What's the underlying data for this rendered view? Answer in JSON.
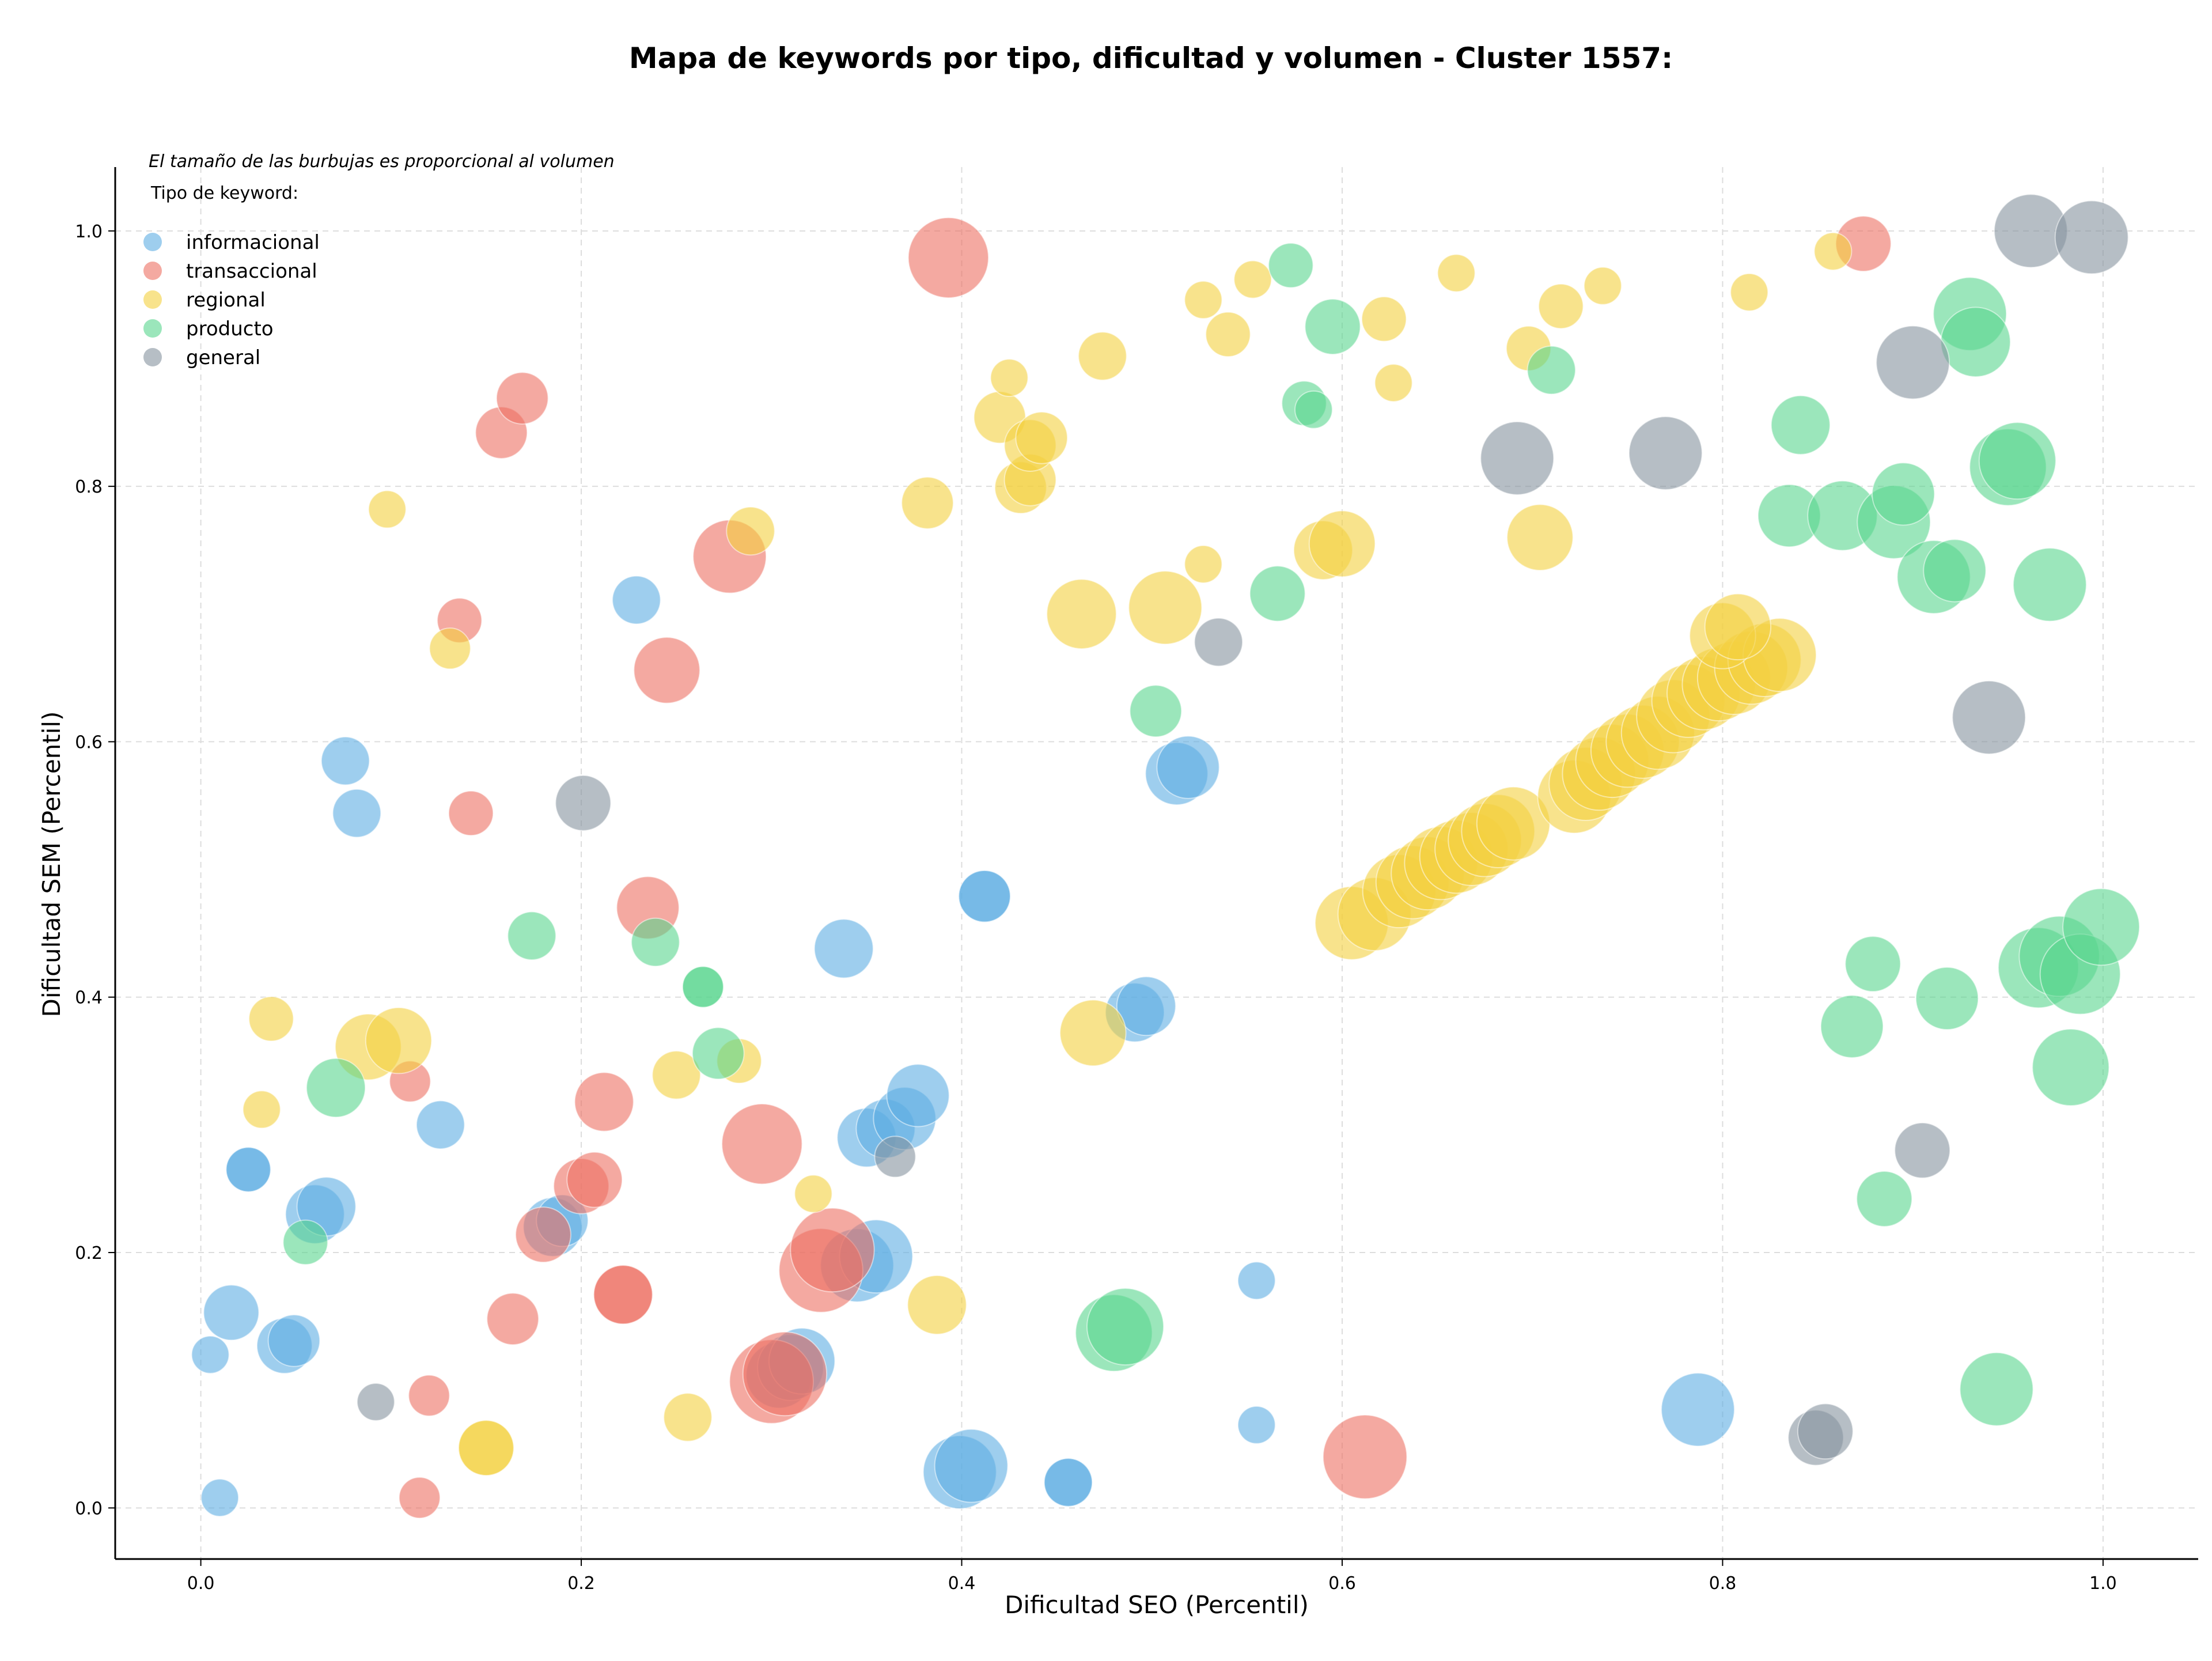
{
  "chart_data": {
    "type": "scatter",
    "title": "Mapa de keywords por tipo, dificultad y volumen - Cluster 1557:",
    "xlabel": "Dificultad SEO (Percentil)",
    "ylabel": "Dificultad SEM (Percentil)",
    "note": "El tamaño de las burbujas es proporcional al volumen",
    "legend_title": "Tipo de keyword:",
    "legend_position": "top-left",
    "grid": true,
    "xlim": [
      -0.045,
      1.05
    ],
    "ylim": [
      -0.04,
      1.05
    ],
    "xticks": [
      0.0,
      0.2,
      0.4,
      0.6,
      0.8,
      1.0
    ],
    "xtick_labels": [
      "0.0",
      "0.2",
      "0.4",
      "0.6",
      "0.8",
      "1.0"
    ],
    "yticks": [
      0.0,
      0.2,
      0.4,
      0.6,
      0.8,
      1.0
    ],
    "ytick_labels": [
      "0.0",
      "0.2",
      "0.4",
      "0.6",
      "0.8",
      "1.0"
    ],
    "series": [
      {
        "name": "informacional",
        "color": "#5DADE2",
        "points": [
          [
            0.005,
            0.12,
            0.2
          ],
          [
            0.01,
            0.008,
            0.2
          ],
          [
            0.016,
            0.153,
            0.45
          ],
          [
            0.025,
            0.265,
            0.3
          ],
          [
            0.025,
            0.265,
            0.3
          ],
          [
            0.044,
            0.127,
            0.45
          ],
          [
            0.049,
            0.131,
            0.4
          ],
          [
            0.06,
            0.23,
            0.5
          ],
          [
            0.066,
            0.236,
            0.5
          ],
          [
            0.076,
            0.585,
            0.35
          ],
          [
            0.082,
            0.544,
            0.35
          ],
          [
            0.126,
            0.3,
            0.35
          ],
          [
            0.185,
            0.22,
            0.5
          ],
          [
            0.19,
            0.225,
            0.4
          ],
          [
            0.229,
            0.711,
            0.35
          ],
          [
            0.304,
            0.104,
            0.6
          ],
          [
            0.31,
            0.11,
            0.6
          ],
          [
            0.316,
            0.115,
            0.6
          ],
          [
            0.338,
            0.438,
            0.5
          ],
          [
            0.345,
            0.19,
            0.7
          ],
          [
            0.35,
            0.29,
            0.5
          ],
          [
            0.355,
            0.197,
            0.7
          ],
          [
            0.36,
            0.297,
            0.5
          ],
          [
            0.37,
            0.305,
            0.55
          ],
          [
            0.377,
            0.323,
            0.55
          ],
          [
            0.399,
            0.028,
            0.7
          ],
          [
            0.405,
            0.033,
            0.7
          ],
          [
            0.412,
            0.479,
            0.4
          ],
          [
            0.412,
            0.479,
            0.4
          ],
          [
            0.456,
            0.02,
            0.35
          ],
          [
            0.456,
            0.02,
            0.35
          ],
          [
            0.491,
            0.388,
            0.5
          ],
          [
            0.497,
            0.393,
            0.5
          ],
          [
            0.513,
            0.575,
            0.55
          ],
          [
            0.519,
            0.58,
            0.55
          ],
          [
            0.555,
            0.065,
            0.2
          ],
          [
            0.555,
            0.178,
            0.2
          ],
          [
            0.787,
            0.077,
            0.7
          ]
        ]
      },
      {
        "name": "transaccional",
        "color": "#EC7063",
        "points": [
          [
            0.115,
            0.008,
            0.25
          ],
          [
            0.11,
            0.334,
            0.25
          ],
          [
            0.12,
            0.088,
            0.25
          ],
          [
            0.136,
            0.695,
            0.3
          ],
          [
            0.142,
            0.544,
            0.3
          ],
          [
            0.158,
            0.842,
            0.4
          ],
          [
            0.169,
            0.869,
            0.4
          ],
          [
            0.164,
            0.148,
            0.4
          ],
          [
            0.18,
            0.214,
            0.45
          ],
          [
            0.2,
            0.252,
            0.45
          ],
          [
            0.207,
            0.257,
            0.45
          ],
          [
            0.212,
            0.318,
            0.5
          ],
          [
            0.222,
            0.167,
            0.5
          ],
          [
            0.222,
            0.167,
            0.5
          ],
          [
            0.235,
            0.47,
            0.55
          ],
          [
            0.245,
            0.656,
            0.6
          ],
          [
            0.278,
            0.745,
            0.7
          ],
          [
            0.295,
            0.285,
            0.8
          ],
          [
            0.3,
            0.099,
            0.85
          ],
          [
            0.307,
            0.105,
            0.85
          ],
          [
            0.326,
            0.186,
            0.85
          ],
          [
            0.332,
            0.202,
            0.85
          ],
          [
            0.393,
            0.979,
            0.8
          ],
          [
            0.612,
            0.04,
            0.85
          ],
          [
            0.874,
            0.99,
            0.45
          ]
        ]
      },
      {
        "name": "regional",
        "color": "#F4D03F",
        "points": [
          [
            0.032,
            0.312,
            0.2
          ],
          [
            0.037,
            0.383,
            0.3
          ],
          [
            0.098,
            0.782,
            0.2
          ],
          [
            0.088,
            0.361,
            0.6
          ],
          [
            0.104,
            0.366,
            0.6
          ],
          [
            0.131,
            0.673,
            0.25
          ],
          [
            0.15,
            0.047,
            0.45
          ],
          [
            0.15,
            0.047,
            0.45
          ],
          [
            0.25,
            0.339,
            0.35
          ],
          [
            0.256,
            0.071,
            0.35
          ],
          [
            0.283,
            0.35,
            0.3
          ],
          [
            0.289,
            0.765,
            0.35
          ],
          [
            0.322,
            0.246,
            0.2
          ],
          [
            0.382,
            0.787,
            0.4
          ],
          [
            0.387,
            0.159,
            0.5
          ],
          [
            0.42,
            0.854,
            0.4
          ],
          [
            0.425,
            0.885,
            0.2
          ],
          [
            0.431,
            0.799,
            0.4
          ],
          [
            0.436,
            0.805,
            0.4
          ],
          [
            0.436,
            0.832,
            0.4
          ],
          [
            0.442,
            0.838,
            0.4
          ],
          [
            0.463,
            0.7,
            0.65
          ],
          [
            0.469,
            0.372,
            0.6
          ],
          [
            0.474,
            0.902,
            0.35
          ],
          [
            0.507,
            0.705,
            0.7
          ],
          [
            0.527,
            0.946,
            0.2
          ],
          [
            0.527,
            0.739,
            0.2
          ],
          [
            0.54,
            0.919,
            0.3
          ],
          [
            0.553,
            0.962,
            0.2
          ],
          [
            0.59,
            0.75,
            0.5
          ],
          [
            0.6,
            0.755,
            0.6
          ],
          [
            0.622,
            0.931,
            0.3
          ],
          [
            0.627,
            0.881,
            0.2
          ],
          [
            0.66,
            0.967,
            0.2
          ],
          [
            0.698,
            0.908,
            0.3
          ],
          [
            0.704,
            0.76,
            0.6
          ],
          [
            0.715,
            0.941,
            0.3
          ],
          [
            0.737,
            0.957,
            0.2
          ],
          [
            0.814,
            0.952,
            0.2
          ],
          [
            0.858,
            0.984,
            0.2
          ],
          [
            0.605,
            0.458,
            0.7
          ],
          [
            0.617,
            0.465,
            0.7
          ],
          [
            0.63,
            0.483,
            0.7
          ],
          [
            0.637,
            0.49,
            0.7
          ],
          [
            0.645,
            0.497,
            0.7
          ],
          [
            0.652,
            0.505,
            0.7
          ],
          [
            0.66,
            0.51,
            0.7
          ],
          [
            0.668,
            0.516,
            0.7
          ],
          [
            0.675,
            0.523,
            0.7
          ],
          [
            0.682,
            0.53,
            0.7
          ],
          [
            0.69,
            0.536,
            0.7
          ],
          [
            0.722,
            0.557,
            0.7
          ],
          [
            0.728,
            0.567,
            0.7
          ],
          [
            0.735,
            0.575,
            0.7
          ],
          [
            0.742,
            0.585,
            0.7
          ],
          [
            0.75,
            0.593,
            0.7
          ],
          [
            0.758,
            0.6,
            0.7
          ],
          [
            0.766,
            0.607,
            0.7
          ],
          [
            0.774,
            0.62,
            0.7
          ],
          [
            0.782,
            0.632,
            0.7
          ],
          [
            0.79,
            0.638,
            0.7
          ],
          [
            0.798,
            0.645,
            0.7
          ],
          [
            0.806,
            0.65,
            0.7
          ],
          [
            0.815,
            0.658,
            0.7
          ],
          [
            0.822,
            0.664,
            0.7
          ],
          [
            0.83,
            0.668,
            0.7
          ],
          [
            0.8,
            0.683,
            0.6
          ],
          [
            0.808,
            0.69,
            0.6
          ]
        ]
      },
      {
        "name": "producto",
        "color": "#58D68D",
        "points": [
          [
            0.055,
            0.208,
            0.3
          ],
          [
            0.071,
            0.329,
            0.5
          ],
          [
            0.174,
            0.448,
            0.35
          ],
          [
            0.239,
            0.443,
            0.35
          ],
          [
            0.264,
            0.408,
            0.25
          ],
          [
            0.264,
            0.408,
            0.25
          ],
          [
            0.272,
            0.356,
            0.4
          ],
          [
            0.48,
            0.137,
            0.75
          ],
          [
            0.486,
            0.142,
            0.75
          ],
          [
            0.502,
            0.624,
            0.4
          ],
          [
            0.566,
            0.716,
            0.45
          ],
          [
            0.573,
            0.973,
            0.3
          ],
          [
            0.58,
            0.865,
            0.3
          ],
          [
            0.585,
            0.86,
            0.2
          ],
          [
            0.595,
            0.925,
            0.45
          ],
          [
            0.71,
            0.891,
            0.35
          ],
          [
            0.835,
            0.777,
            0.55
          ],
          [
            0.841,
            0.848,
            0.5
          ],
          [
            0.863,
            0.777,
            0.65
          ],
          [
            0.868,
            0.377,
            0.55
          ],
          [
            0.879,
            0.426,
            0.45
          ],
          [
            0.885,
            0.242,
            0.45
          ],
          [
            0.89,
            0.772,
            0.7
          ],
          [
            0.895,
            0.794,
            0.55
          ],
          [
            0.911,
            0.729,
            0.7
          ],
          [
            0.918,
            0.399,
            0.55
          ],
          [
            0.922,
            0.734,
            0.55
          ],
          [
            0.93,
            0.935,
            0.7
          ],
          [
            0.933,
            0.913,
            0.65
          ],
          [
            0.944,
            0.093,
            0.7
          ],
          [
            0.95,
            0.815,
            0.75
          ],
          [
            0.955,
            0.82,
            0.75
          ],
          [
            0.966,
            0.423,
            0.8
          ],
          [
            0.972,
            0.723,
            0.7
          ],
          [
            0.977,
            0.432,
            0.8
          ],
          [
            0.983,
            0.345,
            0.75
          ],
          [
            0.988,
            0.418,
            0.8
          ],
          [
            0.999,
            0.455,
            0.75
          ]
        ]
      },
      {
        "name": "general",
        "color": "#85929E",
        "points": [
          [
            0.092,
            0.083,
            0.2
          ],
          [
            0.201,
            0.552,
            0.45
          ],
          [
            0.365,
            0.275,
            0.25
          ],
          [
            0.535,
            0.678,
            0.35
          ],
          [
            0.692,
            0.822,
            0.7
          ],
          [
            0.77,
            0.826,
            0.7
          ],
          [
            0.849,
            0.055,
            0.45
          ],
          [
            0.854,
            0.06,
            0.45
          ],
          [
            0.9,
            0.897,
            0.7
          ],
          [
            0.905,
            0.28,
            0.45
          ],
          [
            0.94,
            0.619,
            0.7
          ],
          [
            0.962,
            1.0,
            0.7
          ],
          [
            0.994,
            0.995,
            0.7
          ]
        ]
      }
    ]
  }
}
